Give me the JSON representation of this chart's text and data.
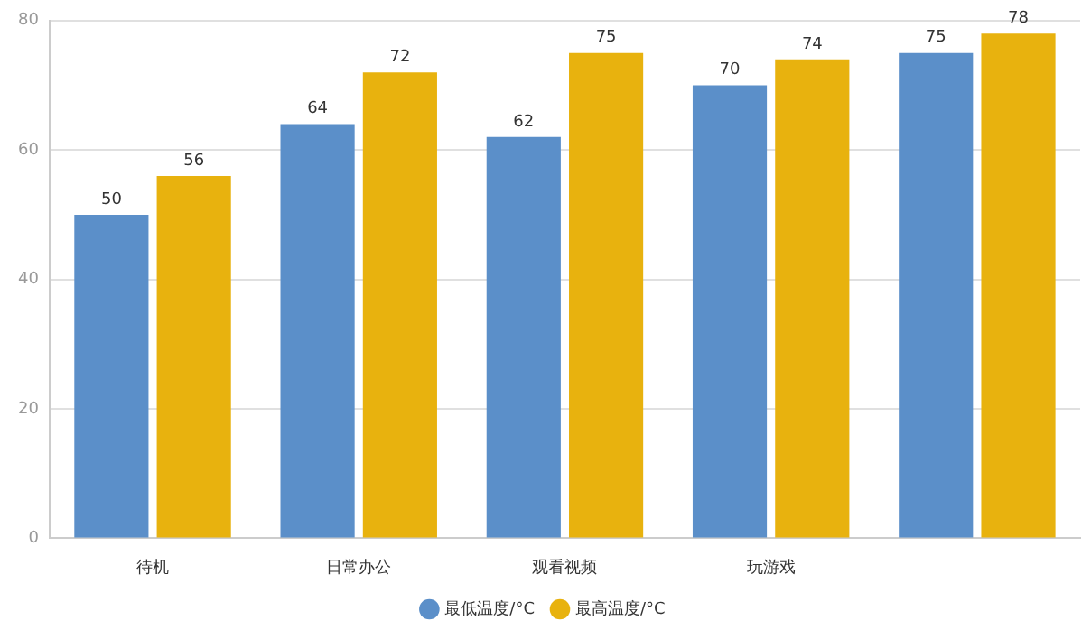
{
  "chart_data": {
    "type": "bar",
    "categories": [
      "待机",
      "日常办公",
      "观看视频",
      "玩游戏",
      null
    ],
    "series": [
      {
        "name": "最低温度/°C",
        "color": "#5b8fc9",
        "values": [
          50,
          64,
          62,
          70,
          75
        ]
      },
      {
        "name": "最高温度/°C",
        "color": "#e8b20e",
        "values": [
          56,
          72,
          75,
          74,
          78
        ]
      }
    ],
    "ylim": [
      0,
      80
    ],
    "yticks": [
      0,
      20,
      40,
      60,
      80
    ],
    "grid": "y",
    "legend": "bottom",
    "data_labels": true
  }
}
